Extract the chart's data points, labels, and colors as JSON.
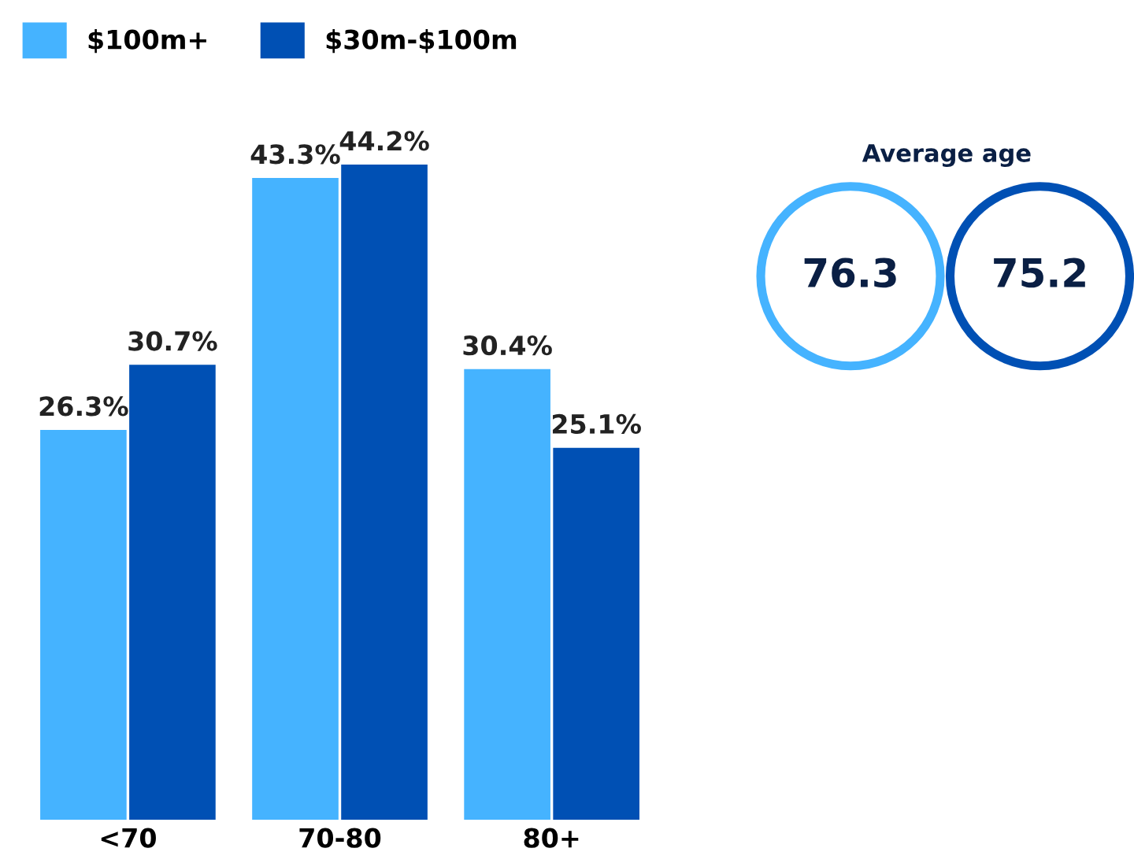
{
  "chart_data": {
    "type": "bar",
    "categories": [
      "<70",
      "70-80",
      "80+"
    ],
    "series": [
      {
        "name": "$100m+",
        "color": "#45b3ff",
        "values": [
          26.3,
          43.3,
          30.4
        ],
        "value_labels": [
          "26.3%",
          "43.3%",
          "30.4%"
        ]
      },
      {
        "name": "$30m-$100m",
        "color": "#0050b4",
        "values": [
          30.7,
          44.2,
          25.1
        ],
        "value_labels": [
          "30.7%",
          "44.2%",
          "25.1%"
        ]
      }
    ],
    "legend": "top left",
    "annotations": [
      "Average age",
      "76.3",
      "75.2"
    ]
  }
}
